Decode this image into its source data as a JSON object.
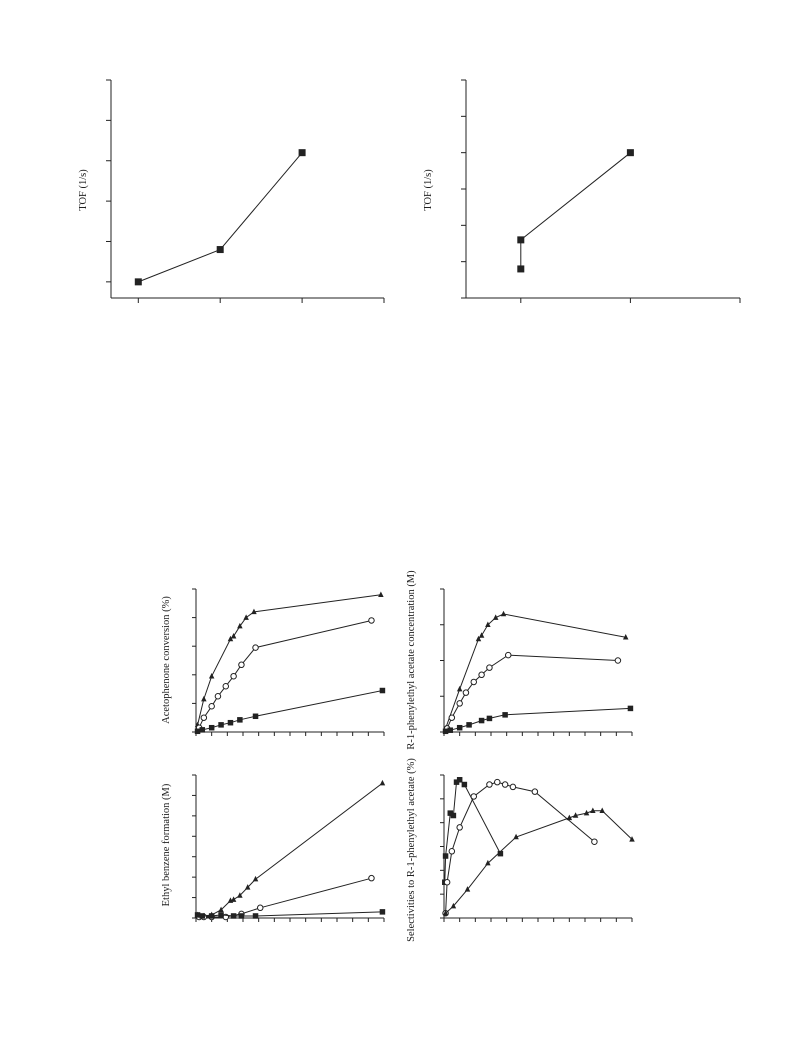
{
  "chart_data": [
    {
      "type": "line",
      "ylabel": "TOF (1/s)",
      "xlim": [
        0,
        10
      ],
      "ylim": [
        0,
        5.4
      ],
      "xticks": [
        1,
        4,
        7,
        10
      ],
      "yticks": [
        0.4,
        1.4,
        2.4,
        3.4,
        4.4,
        5.4
      ],
      "series": [
        {
          "marker": "square",
          "points": [
            [
              1,
              0.4
            ],
            [
              4,
              1.2
            ],
            [
              7,
              3.6
            ]
          ]
        }
      ]
    },
    {
      "type": "line",
      "ylabel": "TOF (1/s)",
      "xlim": [
        0,
        7.5
      ],
      "ylim": [
        0,
        6
      ],
      "xticks": [
        1.5,
        4.5,
        7.5
      ],
      "yticks": [
        0,
        1,
        2,
        3,
        4,
        5,
        6
      ],
      "series": [
        {
          "marker": "square",
          "points": [
            [
              1.5,
              0.8
            ],
            [
              1.5,
              1.6
            ],
            [
              4.5,
              4
            ]
          ]
        }
      ]
    },
    {
      "type": "line",
      "ylabel": "Acetophenone conversion (%)",
      "xlim": [
        0,
        12
      ],
      "ylim": [
        0,
        100
      ],
      "xticks": [
        0,
        1,
        2,
        3,
        4,
        5,
        6,
        7,
        8,
        9,
        10,
        11,
        12
      ],
      "yticks": [
        0,
        20,
        40,
        60,
        80,
        100
      ],
      "series": [
        {
          "marker": "triangle",
          "points": [
            [
              0.1,
              5
            ],
            [
              0.5,
              23
            ],
            [
              1,
              39
            ],
            [
              2.2,
              65
            ],
            [
              2.4,
              67
            ],
            [
              2.8,
              74
            ],
            [
              3.2,
              80
            ],
            [
              3.7,
              84
            ],
            [
              11.8,
              96
            ]
          ]
        },
        {
          "marker": "circle",
          "points": [
            [
              0.2,
              3
            ],
            [
              0.5,
              10
            ],
            [
              1,
              18
            ],
            [
              1.4,
              25
            ],
            [
              1.9,
              32
            ],
            [
              2.4,
              39
            ],
            [
              2.9,
              47
            ],
            [
              3.8,
              59
            ],
            [
              11.2,
              78
            ]
          ]
        },
        {
          "marker": "square",
          "points": [
            [
              0.1,
              0.5
            ],
            [
              0.4,
              1.5
            ],
            [
              1,
              3
            ],
            [
              1.6,
              5
            ],
            [
              2.2,
              6.5
            ],
            [
              2.8,
              8.5
            ],
            [
              3.8,
              11
            ],
            [
              11.9,
              29
            ]
          ]
        }
      ]
    },
    {
      "type": "line",
      "ylabel": "R-1-phenylethyl acetate concentration (M)",
      "xlim": [
        0,
        12
      ],
      "ylim": [
        0,
        0.4
      ],
      "xticks": [
        0,
        1,
        2,
        3,
        4,
        5,
        6,
        7,
        8,
        9,
        10,
        11,
        12
      ],
      "yticks": [
        0,
        0.1,
        0.2,
        0.3,
        0.4
      ],
      "series": [
        {
          "marker": "triangle",
          "points": [
            [
              0.1,
              0.01
            ],
            [
              1,
              0.12
            ],
            [
              2.2,
              0.26
            ],
            [
              2.4,
              0.27
            ],
            [
              2.8,
              0.3
            ],
            [
              3.3,
              0.32
            ],
            [
              3.8,
              0.33
            ],
            [
              11.6,
              0.265
            ]
          ]
        },
        {
          "marker": "circle",
          "points": [
            [
              0.2,
              0.01
            ],
            [
              0.5,
              0.04
            ],
            [
              1,
              0.08
            ],
            [
              1.4,
              0.11
            ],
            [
              1.9,
              0.14
            ],
            [
              2.4,
              0.16
            ],
            [
              2.9,
              0.18
            ],
            [
              4.1,
              0.215
            ],
            [
              11.1,
              0.2
            ]
          ]
        },
        {
          "marker": "square",
          "points": [
            [
              0.1,
              0.002
            ],
            [
              0.4,
              0.005
            ],
            [
              1,
              0.012
            ],
            [
              1.6,
              0.02
            ],
            [
              2.4,
              0.032
            ],
            [
              2.9,
              0.038
            ],
            [
              3.9,
              0.048
            ],
            [
              11.9,
              0.066
            ]
          ]
        }
      ]
    },
    {
      "type": "line",
      "ylabel": "Ethyl benzene formation (M)",
      "xlim": [
        0,
        12
      ],
      "ylim": [
        0,
        0.14
      ],
      "xticks": [
        0,
        1,
        2,
        3,
        4,
        5,
        6,
        7,
        8,
        9,
        10,
        11,
        12
      ],
      "yticks": [
        0,
        0.02,
        0.04,
        0.06,
        0.08,
        0.1,
        0.12,
        0.14
      ],
      "series": [
        {
          "marker": "triangle",
          "points": [
            [
              0.1,
              0.003
            ],
            [
              0.5,
              0.002
            ],
            [
              1,
              0.003
            ],
            [
              1.6,
              0.008
            ],
            [
              2.2,
              0.017
            ],
            [
              2.4,
              0.018
            ],
            [
              2.8,
              0.022
            ],
            [
              3.3,
              0.03
            ],
            [
              3.8,
              0.038
            ],
            [
              11.9,
              0.132
            ]
          ]
        },
        {
          "marker": "circle",
          "points": [
            [
              0.2,
              0.001
            ],
            [
              0.5,
              0.001
            ],
            [
              1,
              0.001
            ],
            [
              1.9,
              0.001
            ],
            [
              2.9,
              0.004
            ],
            [
              4.1,
              0.01
            ],
            [
              11.2,
              0.039
            ]
          ]
        },
        {
          "marker": "square",
          "points": [
            [
              0.1,
              0.003
            ],
            [
              0.4,
              0.002
            ],
            [
              1,
              0.002
            ],
            [
              1.6,
              0.003
            ],
            [
              2.4,
              0.002
            ],
            [
              2.9,
              0.002
            ],
            [
              3.8,
              0.002
            ],
            [
              11.9,
              0.006
            ]
          ]
        }
      ]
    },
    {
      "type": "line",
      "ylabel": "Selectivities to R-1-phenylethyl acetate (%)",
      "xlim": [
        0,
        12
      ],
      "ylim": [
        40,
        100
      ],
      "xticks": [
        0,
        1,
        2,
        3,
        4,
        5,
        6,
        7,
        8,
        9,
        10,
        11,
        12
      ],
      "yticks": [
        40,
        50,
        60,
        70,
        80,
        90,
        100
      ],
      "series": [
        {
          "marker": "square",
          "points": [
            [
              0.05,
              55
            ],
            [
              0.1,
              66
            ],
            [
              0.4,
              84
            ],
            [
              0.6,
              83
            ],
            [
              0.8,
              97
            ],
            [
              1,
              98
            ],
            [
              1.3,
              96
            ],
            [
              3.6,
              67
            ]
          ]
        },
        {
          "marker": "circle",
          "points": [
            [
              0.1,
              42
            ],
            [
              0.2,
              55
            ],
            [
              0.5,
              68
            ],
            [
              1,
              78
            ],
            [
              1.9,
              91
            ],
            [
              2.9,
              96
            ],
            [
              3.4,
              97
            ],
            [
              3.9,
              96
            ],
            [
              4.4,
              95
            ],
            [
              5.8,
              93
            ],
            [
              9.6,
              72
            ]
          ]
        },
        {
          "marker": "triangle",
          "points": [
            [
              0.1,
              42
            ],
            [
              0.6,
              45
            ],
            [
              1.5,
              52
            ],
            [
              2.8,
              63
            ],
            [
              4.6,
              74
            ],
            [
              8,
              82
            ],
            [
              8.4,
              83
            ],
            [
              9.1,
              84
            ],
            [
              9.5,
              85
            ],
            [
              10.1,
              85
            ],
            [
              12,
              73
            ]
          ]
        }
      ]
    }
  ]
}
